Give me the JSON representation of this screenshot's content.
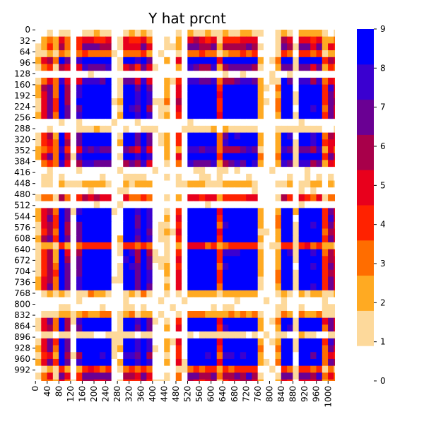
{
  "chart_data": {
    "type": "heatmap",
    "title": "Y hat prcnt",
    "xlabel": "",
    "ylabel": "",
    "n_rows": 1024,
    "n_cols": 1024,
    "x_tick_labels": [
      "0",
      "40",
      "80",
      "120",
      "160",
      "200",
      "240",
      "280",
      "320",
      "360",
      "400",
      "440",
      "480",
      "520",
      "560",
      "600",
      "640",
      "680",
      "720",
      "760",
      "800",
      "840",
      "880",
      "920",
      "960",
      "1000"
    ],
    "y_tick_labels": [
      "0",
      "32",
      "64",
      "96",
      "128",
      "160",
      "192",
      "224",
      "256",
      "288",
      "320",
      "352",
      "384",
      "416",
      "448",
      "480",
      "512",
      "544",
      "576",
      "608",
      "640",
      "672",
      "704",
      "736",
      "768",
      "800",
      "832",
      "864",
      "896",
      "928",
      "960",
      "992"
    ],
    "colorbar": {
      "min": 0,
      "max": 9,
      "tick_labels": [
        "0",
        "1",
        "2",
        "3",
        "4",
        "5",
        "6",
        "7",
        "8",
        "9"
      ],
      "colors": [
        "#ffffff",
        "#fdd99b",
        "#ffaa22",
        "#ff6d00",
        "#ff2200",
        "#e8001c",
        "#a8004a",
        "#6a0093",
        "#3a00d0",
        "#0000ff"
      ]
    },
    "value_range": [
      0,
      9
    ],
    "grid": false
  }
}
